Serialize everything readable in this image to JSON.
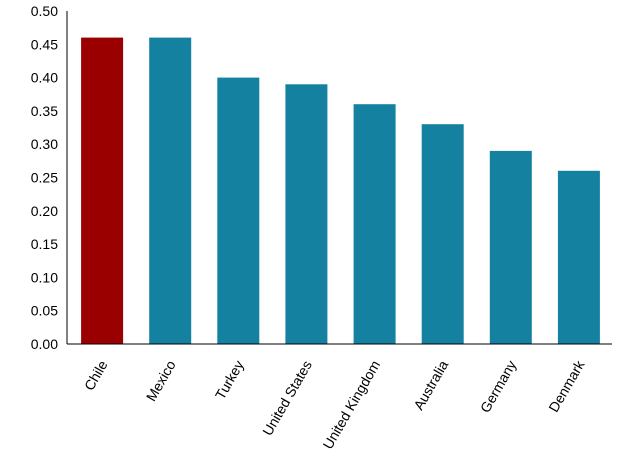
{
  "chart_data": {
    "type": "bar",
    "categories": [
      "Chile",
      "Mexico",
      "Turkey",
      "United States",
      "United Kingdom",
      "Australia",
      "Germany",
      "Denmark"
    ],
    "values": [
      0.46,
      0.46,
      0.4,
      0.39,
      0.36,
      0.33,
      0.29,
      0.26
    ],
    "highlight_index": 0,
    "colors": {
      "highlight": "#9b0000",
      "default": "#1581a1",
      "axis": "#000000"
    },
    "ylim": [
      0,
      0.5
    ],
    "yticks": [
      "0.00",
      "0.05",
      "0.10",
      "0.15",
      "0.20",
      "0.25",
      "0.30",
      "0.35",
      "0.40",
      "0.45",
      "0.50"
    ],
    "grid": false,
    "title": "",
    "xlabel": "",
    "ylabel": ""
  }
}
